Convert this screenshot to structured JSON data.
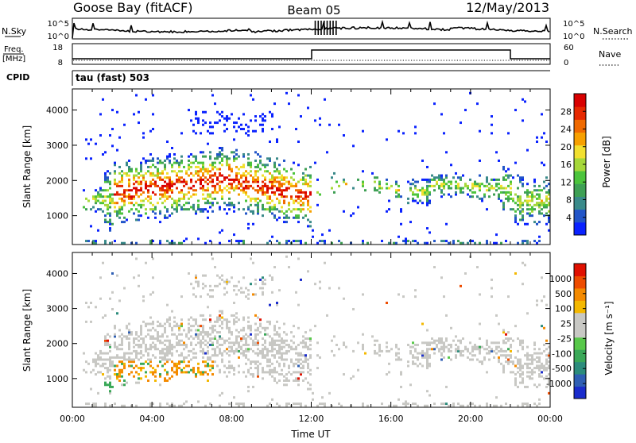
{
  "header": {
    "station": "Goose Bay (fitACF)",
    "beam": "Beam 05",
    "date": "12/May/2013"
  },
  "top_panels": {
    "nsky_label": "N.Sky",
    "nsky_ticks": [
      "10^5",
      "10^0"
    ],
    "nsearch_label": "N.Search",
    "nsearch_ticks": [
      "10^5",
      "10^0"
    ],
    "freq_label_1": "Freq.",
    "freq_label_2": "[MHz]",
    "freq_ticks": [
      "18",
      "8"
    ],
    "nave_label": "Nave",
    "nave_ticks": [
      "60",
      "0"
    ],
    "cpid_label": "CPID",
    "cpid_value": "tau (fast) 503"
  },
  "chart_data": [
    {
      "type": "heatmap",
      "name": "power",
      "ylabel": "Slant Range [km]",
      "xlabel": "",
      "yticks": [
        "1000",
        "2000",
        "3000",
        "4000"
      ],
      "ylim": [
        180,
        4600
      ],
      "xlim_hours": [
        0,
        24
      ],
      "colorbar_label": "Power [dB]",
      "colorbar_ticks": [
        "4",
        "8",
        "12",
        "16",
        "20",
        "24",
        "28"
      ],
      "colorbar_colors": [
        "#0a22ff",
        "#2255c8",
        "#3a8a8a",
        "#3fa055",
        "#4cc43c",
        "#a6d83a",
        "#f2e030",
        "#f7a000",
        "#f06a00",
        "#e62800",
        "#d80000"
      ]
    },
    {
      "type": "heatmap",
      "name": "velocity",
      "ylabel": "Slant Range [km]",
      "xlabel": "Time UT",
      "xticks": [
        "00:00",
        "04:00",
        "08:00",
        "12:00",
        "16:00",
        "20:00",
        "00:00"
      ],
      "yticks": [
        "1000",
        "2000",
        "3000",
        "4000"
      ],
      "ylim": [
        180,
        4600
      ],
      "xlim_hours": [
        0,
        24
      ],
      "colorbar_label": "Velocity [m s⁻¹]",
      "colorbar_ticks": [
        "1000",
        "500",
        "100",
        "25",
        "-25",
        "-100",
        "-500",
        "-1000"
      ],
      "colorbar_colors": [
        "#1a2ccc",
        "#2f5fb4",
        "#2c8c7c",
        "#3aa858",
        "#58c84a",
        "#c8c8c4",
        "#c8c8c4",
        "#f4b800",
        "#f48a00",
        "#ee4c00",
        "#e01000"
      ]
    }
  ]
}
